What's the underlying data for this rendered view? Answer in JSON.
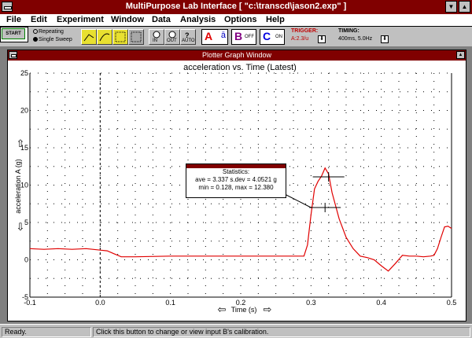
{
  "window": {
    "title": "MultiPurpose Lab Interface [ \"c:\\transcd\\jason2.exp\" ]"
  },
  "menu": [
    "File",
    "Edit",
    "Experiment",
    "Window",
    "Data",
    "Analysis",
    "Options",
    "Help"
  ],
  "toolbar": {
    "start_label": "START",
    "mode_repeating": "Repeating",
    "mode_single": "Single Sweep",
    "zoom_in_label": "IN",
    "zoom_out_label": "OUT",
    "auto_label": "AUTO",
    "input_a_letter": "A",
    "input_a_glyph": "ā",
    "input_b_letter": "B",
    "input_b_state": "OFF",
    "input_c_letter": "C",
    "input_c_state": "ON",
    "trigger_label": "TRIGGER:",
    "trigger_value": "A:2.3/u",
    "timing_label": "TIMING:",
    "timing_value": "400ms, 5.0Hz"
  },
  "plot_window": {
    "title": "Plotter Graph Window"
  },
  "statistics": {
    "title": "Statistics:",
    "line1": "ave = 3.337 s.dev = 4.0521 g",
    "line2": "min = 0.128, max = 12.380"
  },
  "chart_data": {
    "type": "line",
    "title": "acceleration vs. Time (Latest)",
    "xlabel": "Time (s)",
    "ylabel": "acceleration A (g)",
    "xlim": [
      -0.1,
      0.5
    ],
    "ylim": [
      -5,
      25
    ],
    "x_ticks": [
      "-0.1",
      "0.0",
      "0.1",
      "0.2",
      "0.3",
      "0.4",
      "0.5"
    ],
    "y_ticks": [
      "-5",
      "0",
      "5",
      "10",
      "15",
      "20",
      "25"
    ],
    "grid": true,
    "series": [
      {
        "color": "#e00000",
        "x": [
          -0.1,
          -0.08,
          -0.06,
          -0.04,
          -0.02,
          0.0,
          0.01,
          0.02,
          0.03,
          0.05,
          0.1,
          0.15,
          0.2,
          0.25,
          0.29,
          0.295,
          0.3,
          0.305,
          0.31,
          0.315,
          0.32,
          0.325,
          0.33,
          0.34,
          0.35,
          0.36,
          0.37,
          0.38,
          0.39,
          0.4,
          0.41,
          0.42,
          0.43,
          0.44,
          0.45,
          0.46,
          0.47,
          0.475,
          0.48,
          0.485,
          0.49,
          0.495,
          0.5
        ],
        "y": [
          1.5,
          1.4,
          1.5,
          1.4,
          1.5,
          1.3,
          1.2,
          0.8,
          0.4,
          0.4,
          0.5,
          0.5,
          0.5,
          0.5,
          0.5,
          2.0,
          6.0,
          9.5,
          10.5,
          11.2,
          12.3,
          11.5,
          9.0,
          5.5,
          3.0,
          1.5,
          0.5,
          0.3,
          0.0,
          -0.8,
          -1.5,
          -0.5,
          0.6,
          0.5,
          0.5,
          0.4,
          0.5,
          0.6,
          1.5,
          3.0,
          4.4,
          4.5,
          4.2
        ]
      }
    ],
    "markers": [
      {
        "x": 0.325,
        "y": 11.1
      },
      {
        "x": 0.32,
        "y": 7.0
      }
    ]
  },
  "status": {
    "ready": "Ready.",
    "hint": "Click this button to change or view input B's calibration."
  }
}
